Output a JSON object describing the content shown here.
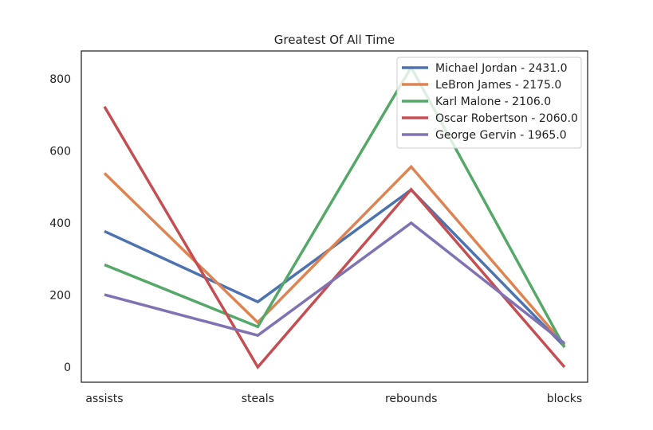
{
  "chart_data": {
    "type": "line",
    "title": "Greatest Of All Time",
    "xlabel": "",
    "ylabel": "",
    "categories": [
      "assists",
      "steals",
      "rebounds",
      "blocks"
    ],
    "yticks": [
      0,
      200,
      400,
      600,
      800
    ],
    "ylim": [
      -40,
      870
    ],
    "grid": false,
    "legend_position": "top-right",
    "series": [
      {
        "name": "Michael Jordan - 2431.0",
        "color": "#4c72b0",
        "values": [
          377,
          181,
          492,
          57
        ]
      },
      {
        "name": "LeBron James - 2175.0",
        "color": "#dd8452",
        "values": [
          538,
          124,
          556,
          62
        ]
      },
      {
        "name": "Karl Malone - 2106.0",
        "color": "#55a868",
        "values": [
          284,
          112,
          832,
          55
        ]
      },
      {
        "name": "Oscar Robertson - 2060.0",
        "color": "#c44e52",
        "values": [
          723,
          0,
          493,
          0
        ]
      },
      {
        "name": "George Gervin - 1965.0",
        "color": "#8172b3",
        "values": [
          201,
          88,
          400,
          66
        ]
      }
    ]
  }
}
